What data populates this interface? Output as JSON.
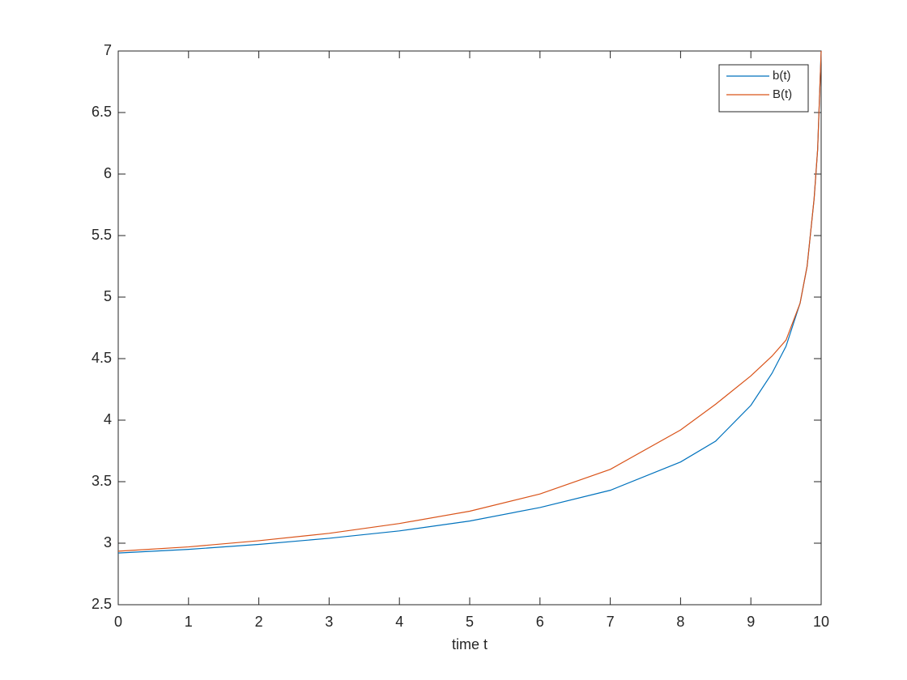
{
  "chart_data": {
    "type": "line",
    "xlabel": "time t",
    "x": [
      0,
      1,
      2,
      3,
      4,
      5,
      6,
      7,
      8,
      8.5,
      9,
      9.3,
      9.5,
      9.7,
      9.8,
      9.9,
      9.95,
      10
    ],
    "series": [
      {
        "name": "b(t)",
        "color": "#0072bd",
        "values": [
          2.92,
          2.95,
          2.99,
          3.04,
          3.1,
          3.18,
          3.29,
          3.43,
          3.66,
          3.83,
          4.12,
          4.38,
          4.6,
          4.95,
          5.25,
          5.8,
          6.2,
          7
        ]
      },
      {
        "name": "B(t)",
        "color": "#d95319",
        "values": [
          2.935,
          2.97,
          3.02,
          3.08,
          3.16,
          3.26,
          3.4,
          3.6,
          3.92,
          4.13,
          4.36,
          4.52,
          4.65,
          4.95,
          5.25,
          5.8,
          6.2,
          7
        ]
      }
    ],
    "xlim": [
      0,
      10
    ],
    "xticks": [
      0,
      1,
      2,
      3,
      4,
      5,
      6,
      7,
      8,
      9,
      10
    ],
    "ylim": [
      2.5,
      7
    ],
    "yticks": [
      2.5,
      3,
      3.5,
      4,
      4.5,
      5,
      5.5,
      6,
      6.5,
      7
    ],
    "legend": "top-right"
  }
}
